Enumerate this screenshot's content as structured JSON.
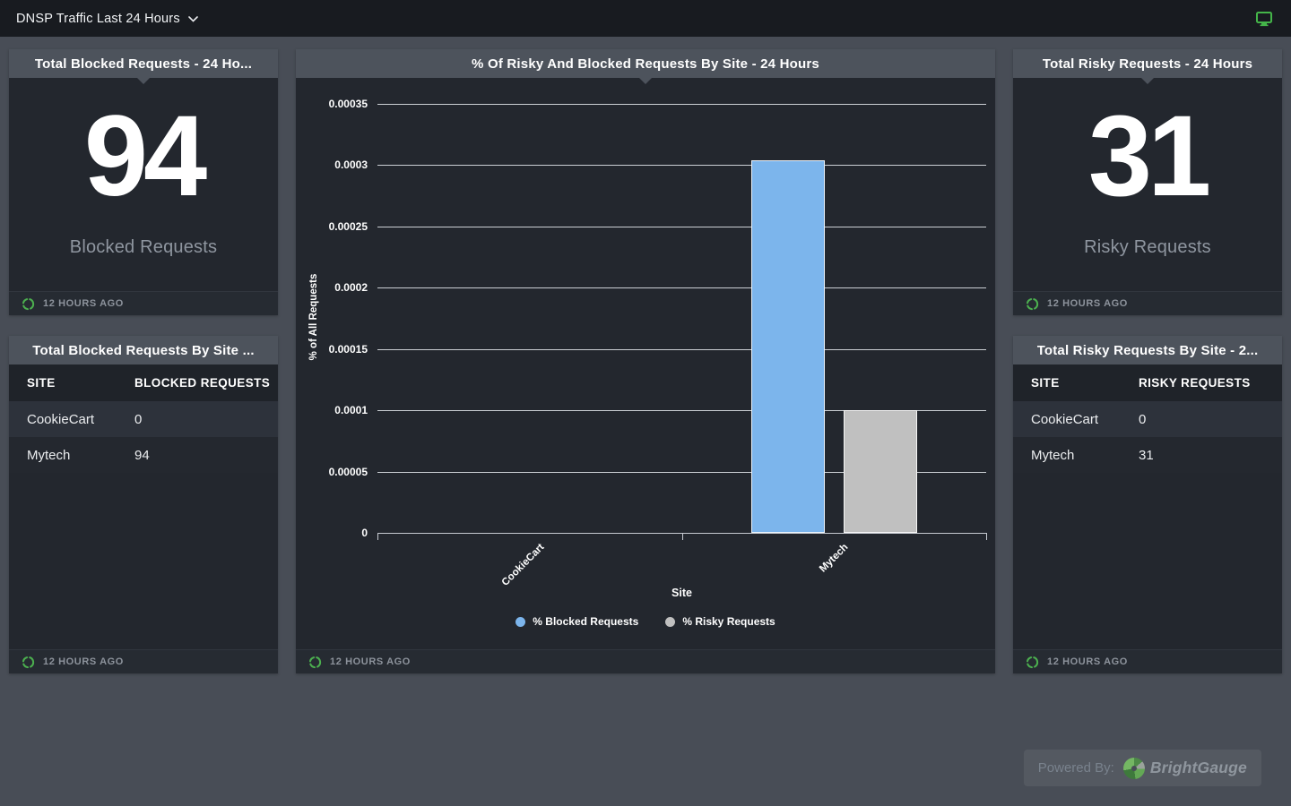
{
  "topbar": {
    "title": "DNSP Traffic Last 24 Hours"
  },
  "cards": {
    "blocked_total": {
      "title": "Total Blocked Requests - 24 Ho...",
      "value": "94",
      "label": "Blocked Requests",
      "updated": "12 HOURS AGO"
    },
    "blocked_by_site": {
      "title": "Total Blocked Requests By Site ...",
      "columns": [
        "SITE",
        "BLOCKED REQUESTS"
      ],
      "rows": [
        [
          "CookieCart",
          "0"
        ],
        [
          "Mytech",
          "94"
        ]
      ],
      "updated": "12 HOURS AGO"
    },
    "risky_total": {
      "title": "Total Risky Requests - 24 Hours",
      "value": "31",
      "label": "Risky Requests",
      "updated": "12 HOURS AGO"
    },
    "risky_by_site": {
      "title": "Total Risky Requests By Site - 2...",
      "columns": [
        "SITE",
        "RISKY REQUESTS"
      ],
      "rows": [
        [
          "CookieCart",
          "0"
        ],
        [
          "Mytech",
          "31"
        ]
      ],
      "updated": "12 HOURS AGO"
    }
  },
  "chart_panel": {
    "title": "% Of Risky And Blocked Requests By Site - 24 Hours",
    "updated": "12 HOURS AGO"
  },
  "chart_data": {
    "type": "bar",
    "title": "% Of Risky And Blocked Requests By Site - 24 Hours",
    "categories": [
      "CookieCart",
      "Mytech"
    ],
    "series": [
      {
        "name": "% Blocked Requests",
        "color": "#7cb5ec",
        "values": [
          0,
          0.000304
        ]
      },
      {
        "name": "% Risky Requests",
        "color": "#c0c0c0",
        "values": [
          0,
          0.0001
        ]
      }
    ],
    "xlabel": "Site",
    "ylabel": "% of All Requests",
    "ylim": [
      0,
      0.00035
    ],
    "ytick_step": 5e-05,
    "ytick_labels": [
      "0",
      "0.00005",
      "0.0001",
      "0.00015",
      "0.0002",
      "0.00025",
      "0.0003",
      "0.00035"
    ],
    "grid": true,
    "legend_position": "bottom"
  },
  "colors": {
    "accent_green": "#4cb04f",
    "bar_blue": "#7cb5ec",
    "bar_gray": "#c0c0c0"
  },
  "powered": {
    "prefix": "Powered By:",
    "brand": "BrightGauge"
  }
}
